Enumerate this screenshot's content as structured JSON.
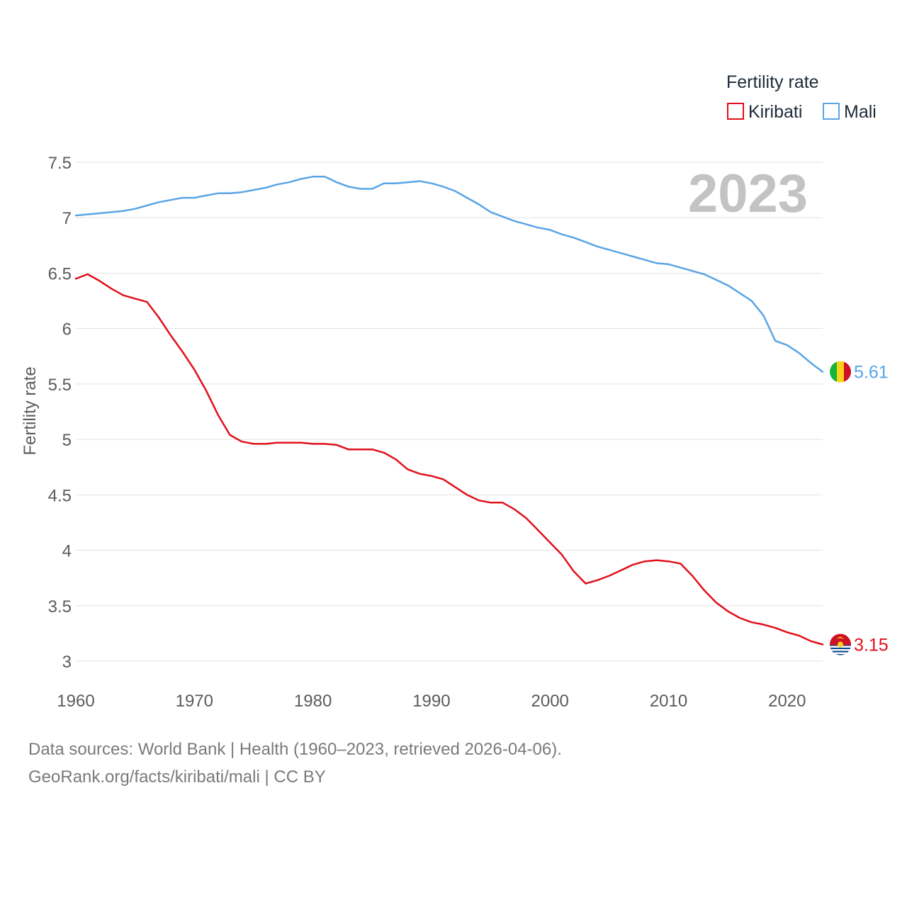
{
  "chart_data": {
    "type": "line",
    "title": "",
    "ylabel": "Fertility rate",
    "xlabel": "",
    "year_label": "2023",
    "legend_title": "Fertility rate",
    "legend_position": "top-right",
    "xlim": [
      1960,
      2023
    ],
    "ylim": [
      3,
      7.5
    ],
    "x_ticks": [
      1960,
      1970,
      1980,
      1990,
      2000,
      2010,
      2020
    ],
    "x_tick_labels": [
      "1960",
      "1970",
      "1980",
      "1990",
      "2000",
      "2010",
      "2020"
    ],
    "y_ticks": [
      3,
      3.5,
      4,
      4.5,
      5,
      5.5,
      6,
      6.5,
      7,
      7.5
    ],
    "y_tick_labels": [
      "3",
      "3.5",
      "4",
      "4.5",
      "5",
      "5.5",
      "6",
      "6.5",
      "7",
      "7.5"
    ],
    "grid": true,
    "x": [
      1960,
      1961,
      1962,
      1963,
      1964,
      1965,
      1966,
      1967,
      1968,
      1969,
      1970,
      1971,
      1972,
      1973,
      1974,
      1975,
      1976,
      1977,
      1978,
      1979,
      1980,
      1981,
      1982,
      1983,
      1984,
      1985,
      1986,
      1987,
      1988,
      1989,
      1990,
      1991,
      1992,
      1993,
      1994,
      1995,
      1996,
      1997,
      1998,
      1999,
      2000,
      2001,
      2002,
      2003,
      2004,
      2005,
      2006,
      2007,
      2008,
      2009,
      2010,
      2011,
      2012,
      2013,
      2014,
      2015,
      2016,
      2017,
      2018,
      2019,
      2020,
      2021,
      2022,
      2023
    ],
    "series": [
      {
        "name": "Kiribati",
        "color": "#e0101a",
        "end_label": "3.15",
        "flag": "kiribati-flag",
        "values": [
          6.45,
          6.49,
          6.43,
          6.36,
          6.3,
          6.27,
          6.24,
          6.1,
          5.94,
          5.79,
          5.63,
          5.44,
          5.22,
          5.04,
          4.98,
          4.96,
          4.96,
          4.97,
          4.97,
          4.97,
          4.96,
          4.96,
          4.95,
          4.91,
          4.91,
          4.91,
          4.88,
          4.82,
          4.73,
          4.69,
          4.67,
          4.64,
          4.57,
          4.5,
          4.45,
          4.43,
          4.43,
          4.37,
          4.29,
          4.18,
          4.07,
          3.96,
          3.81,
          3.7,
          3.73,
          3.77,
          3.82,
          3.87,
          3.9,
          3.91,
          3.9,
          3.88,
          3.77,
          3.64,
          3.53,
          3.45,
          3.39,
          3.35,
          3.33,
          3.3,
          3.26,
          3.23,
          3.18,
          3.15
        ]
      },
      {
        "name": "Mali",
        "color": "#5aa5e6",
        "end_label": "5.61",
        "flag": "mali-flag",
        "values": [
          7.02,
          7.03,
          7.04,
          7.05,
          7.06,
          7.08,
          7.11,
          7.14,
          7.16,
          7.18,
          7.18,
          7.2,
          7.22,
          7.22,
          7.23,
          7.25,
          7.27,
          7.3,
          7.32,
          7.35,
          7.37,
          7.37,
          7.32,
          7.28,
          7.26,
          7.26,
          7.31,
          7.31,
          7.32,
          7.33,
          7.31,
          7.28,
          7.24,
          7.18,
          7.12,
          7.05,
          7.01,
          6.97,
          6.94,
          6.91,
          6.89,
          6.85,
          6.82,
          6.78,
          6.74,
          6.71,
          6.68,
          6.65,
          6.62,
          6.59,
          6.58,
          6.55,
          6.52,
          6.49,
          6.44,
          6.39,
          6.32,
          6.25,
          6.12,
          5.89,
          5.85,
          5.78,
          5.69,
          5.61
        ]
      }
    ]
  },
  "footer": {
    "source": "Data sources: World Bank | Health (1960–2023, retrieved 2026-04-06).",
    "credit": "GeoRank.org/facts/kiribati/mali | CC BY"
  }
}
